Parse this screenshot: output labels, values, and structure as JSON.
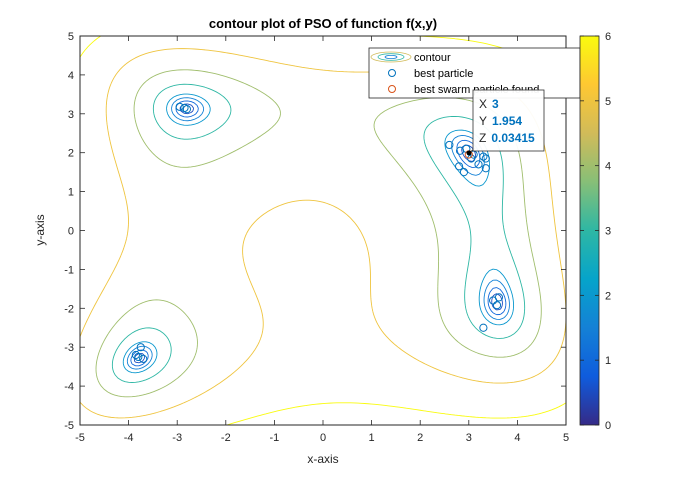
{
  "chart_data": {
    "type": "contour",
    "title": "contour plot of PSO of function f(x,y)",
    "xlabel": "x-axis",
    "ylabel": "y-axis",
    "xlim": [
      -5,
      5
    ],
    "ylim": [
      -5,
      5
    ],
    "x_ticks": [
      "-5",
      "-4",
      "-3",
      "-2",
      "-1",
      "0",
      "1",
      "2",
      "3",
      "4",
      "5"
    ],
    "y_ticks": [
      "-5",
      "-4",
      "-3",
      "-2",
      "-1",
      "0",
      "1",
      "2",
      "3",
      "4",
      "5"
    ],
    "grid": false,
    "colorbar": {
      "range": [
        0,
        6
      ],
      "ticks": [
        "0",
        "1",
        "2",
        "3",
        "4",
        "5",
        "6"
      ],
      "colormap": "parula",
      "colors": [
        "#352a87",
        "#0f5cdd",
        "#1481d6",
        "#06a4ca",
        "#2eb7a4",
        "#87bf77",
        "#d1bb59",
        "#fec832",
        "#f9fb0e"
      ]
    },
    "contour_levels": [
      0.5,
      1,
      1.5,
      2,
      3,
      4,
      5,
      6
    ],
    "minima": [
      {
        "x": -2.805,
        "y": 3.131
      },
      {
        "x": -3.779,
        "y": -3.283
      },
      {
        "x": 3.0,
        "y": 2.0
      },
      {
        "x": 3.584,
        "y": -1.848
      }
    ],
    "legend": {
      "position": "top-right",
      "entries": [
        "contour",
        "best particle",
        "best swarm particle found"
      ]
    },
    "series": [
      {
        "name": "best particle",
        "marker": "circle",
        "color": "#0072bd",
        "points": [
          [
            -2.95,
            3.18
          ],
          [
            -2.8,
            3.12
          ],
          [
            -2.85,
            3.15
          ],
          [
            -3.85,
            -3.2
          ],
          [
            -3.75,
            -3.0
          ],
          [
            -3.8,
            -3.25
          ],
          [
            -3.7,
            -3.3
          ],
          [
            2.6,
            2.2
          ],
          [
            2.82,
            2.05
          ],
          [
            2.95,
            2.1
          ],
          [
            3.05,
            1.85
          ],
          [
            3.2,
            1.7
          ],
          [
            3.35,
            1.85
          ],
          [
            2.9,
            1.5
          ],
          [
            3.35,
            1.6
          ],
          [
            3.3,
            1.9
          ],
          [
            2.8,
            1.65
          ],
          [
            3.1,
            1.95
          ],
          [
            3.5,
            -1.8
          ],
          [
            3.62,
            -1.72
          ],
          [
            3.58,
            -1.92
          ],
          [
            3.3,
            -2.5
          ]
        ]
      },
      {
        "name": "best swarm particle found",
        "marker": "circle",
        "color": "#d95319",
        "points": [
          [
            3,
            1.954
          ]
        ]
      }
    ],
    "datatip": {
      "x_label": "X",
      "x_value": "3",
      "y_label": "Y",
      "y_value": "1.954",
      "z_label": "Z",
      "z_value": "0.03415"
    }
  }
}
